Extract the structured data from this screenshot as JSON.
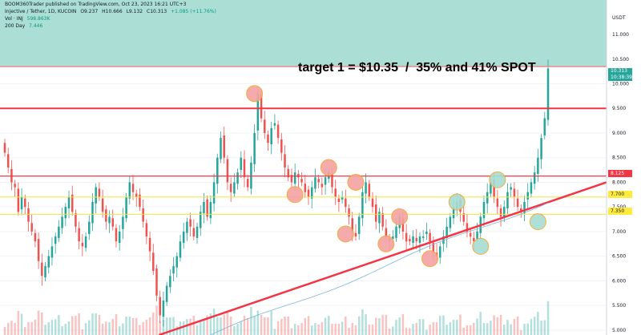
{
  "header": {
    "published": "BOOM360Trader published on TradingView.com, Oct 23, 2023 16:21 UTC+3",
    "symbol_line": {
      "symbol": "Injective / Tether, 1D, KUCOIN",
      "open": "O9.237",
      "high": "H10.666",
      "low": "L9.132",
      "close": "C10.313",
      "change": "+1.085 (+11.76%)"
    },
    "vol_line": {
      "label": "Vol · INJ",
      "value": "598.863K"
    },
    "ma_line": {
      "label": "200 Day",
      "value": "7.446"
    }
  },
  "currency": "USDT",
  "annotation": "target 1 = $10.35  /  35% and 41% SPOT",
  "price_tags": [
    {
      "text": "10.313",
      "sub": "10:38:39",
      "bg": "#26a69a",
      "fg": "#ffffff"
    },
    {
      "text": "8.125",
      "bg": "#f23645",
      "fg": "#ffffff"
    },
    {
      "text": "7.700",
      "bg": "#ffeb3b",
      "fg": "#131722"
    },
    {
      "text": "7.350",
      "bg": "#ffeb3b",
      "fg": "#131722"
    }
  ],
  "colors": {
    "up": "#26a69a",
    "down": "#ef5350",
    "target_zone": "#a7ddd3",
    "resistance": "#f23645",
    "support": "#f0e442",
    "trendline": "#f23645",
    "ma": "#7fb3d5",
    "circle_red": "#f5a3a3",
    "circle_green": "#a7ddd3",
    "circle_stroke": "#f5a623"
  },
  "chart_data": {
    "type": "candlestick",
    "ylim": [
      4.9,
      11.7
    ],
    "y_ticks": [
      {
        "label": "11.000",
        "value": 11.0
      },
      {
        "label": "10.500",
        "value": 10.5
      },
      {
        "label": "10.000",
        "value": 10.0
      },
      {
        "label": "9.500",
        "value": 9.5
      },
      {
        "label": "9.000",
        "value": 9.0
      },
      {
        "label": "8.500",
        "value": 8.5
      },
      {
        "label": "8.000",
        "value": 8.0
      },
      {
        "label": "7.500",
        "value": 7.5
      },
      {
        "label": "7.000",
        "value": 7.0
      },
      {
        "label": "6.500",
        "value": 6.5
      },
      {
        "label": "6.000",
        "value": 6.0
      },
      {
        "label": "5.500",
        "value": 5.5
      },
      {
        "label": "5.000",
        "value": 5.0
      }
    ],
    "target_zone": [
      10.35,
      11.7
    ],
    "horizontal_levels": [
      {
        "value": 10.35,
        "kind": "target"
      },
      {
        "value": 9.5,
        "kind": "resistance"
      },
      {
        "value": 8.125,
        "kind": "resistance"
      },
      {
        "value": 7.7,
        "kind": "support"
      },
      {
        "value": 7.35,
        "kind": "support"
      }
    ],
    "trendline": {
      "x": [
        0.262,
        1.0
      ],
      "y": [
        4.9,
        8.0
      ]
    },
    "closes": [
      8.6,
      8.3,
      8.0,
      7.9,
      7.4,
      7.7,
      7.5,
      7.2,
      7.0,
      6.8,
      6.4,
      6.1,
      6.3,
      6.5,
      6.7,
      6.9,
      7.1,
      7.3,
      7.5,
      7.7,
      7.4,
      7.1,
      6.8,
      6.7,
      6.9,
      7.2,
      7.6,
      7.9,
      7.7,
      7.4,
      7.2,
      7.3,
      7.1,
      6.8,
      7.0,
      7.3,
      7.7,
      8.0,
      7.8,
      7.7,
      7.5,
      7.2,
      6.9,
      6.6,
      6.2,
      5.7,
      5.3,
      5.6,
      5.9,
      6.1,
      6.3,
      6.5,
      6.8,
      7.0,
      7.2,
      7.1,
      6.9,
      7.1,
      7.4,
      7.6,
      7.3,
      7.6,
      8.0,
      8.5,
      8.9,
      8.5,
      8.0,
      7.8,
      8.0,
      8.2,
      8.5,
      8.1,
      7.9,
      8.4,
      9.0,
      9.8,
      9.3,
      9.0,
      8.8,
      9.1,
      9.2,
      8.9,
      8.6,
      8.3,
      8.1,
      8.0,
      8.2,
      8.1,
      8.0,
      7.8,
      7.7,
      7.9,
      8.1,
      8.0,
      7.9,
      8.1,
      8.2,
      7.9,
      7.7,
      7.6,
      7.7,
      7.5,
      7.3,
      7.0,
      6.9,
      7.3,
      7.8,
      8.0,
      7.7,
      7.5,
      7.2,
      7.4,
      7.1,
      6.9,
      6.8,
      6.9,
      7.1,
      7.3,
      7.0,
      6.8,
      6.8,
      6.9,
      6.8,
      6.9,
      6.9,
      7.0,
      6.8,
      6.6,
      6.5,
      6.7,
      6.9,
      7.1,
      7.3,
      7.5,
      7.6,
      7.4,
      7.2,
      7.0,
      6.9,
      6.8,
      7.0,
      7.3,
      7.6,
      7.8,
      8.0,
      7.7,
      7.5,
      7.3,
      7.5,
      7.8,
      7.9,
      7.7,
      7.5,
      7.4,
      7.6,
      7.8,
      8.0,
      8.2,
      8.5,
      8.9,
      9.3,
      10.31
    ],
    "annotation_circles": [
      {
        "index": 74,
        "price": 9.8,
        "color": "red"
      },
      {
        "index": 86,
        "price": 7.75,
        "color": "red"
      },
      {
        "index": 96,
        "price": 8.3,
        "color": "red"
      },
      {
        "index": 104,
        "price": 8.0,
        "color": "red"
      },
      {
        "index": 101,
        "price": 6.95,
        "color": "red"
      },
      {
        "index": 113,
        "price": 6.75,
        "color": "red"
      },
      {
        "index": 117,
        "price": 7.3,
        "color": "red"
      },
      {
        "index": 126,
        "price": 6.45,
        "color": "red"
      },
      {
        "index": 134,
        "price": 7.6,
        "color": "green"
      },
      {
        "index": 141,
        "price": 6.7,
        "color": "green"
      },
      {
        "index": 146,
        "price": 8.05,
        "color": "green"
      },
      {
        "index": 158,
        "price": 7.2,
        "color": "green"
      }
    ]
  }
}
